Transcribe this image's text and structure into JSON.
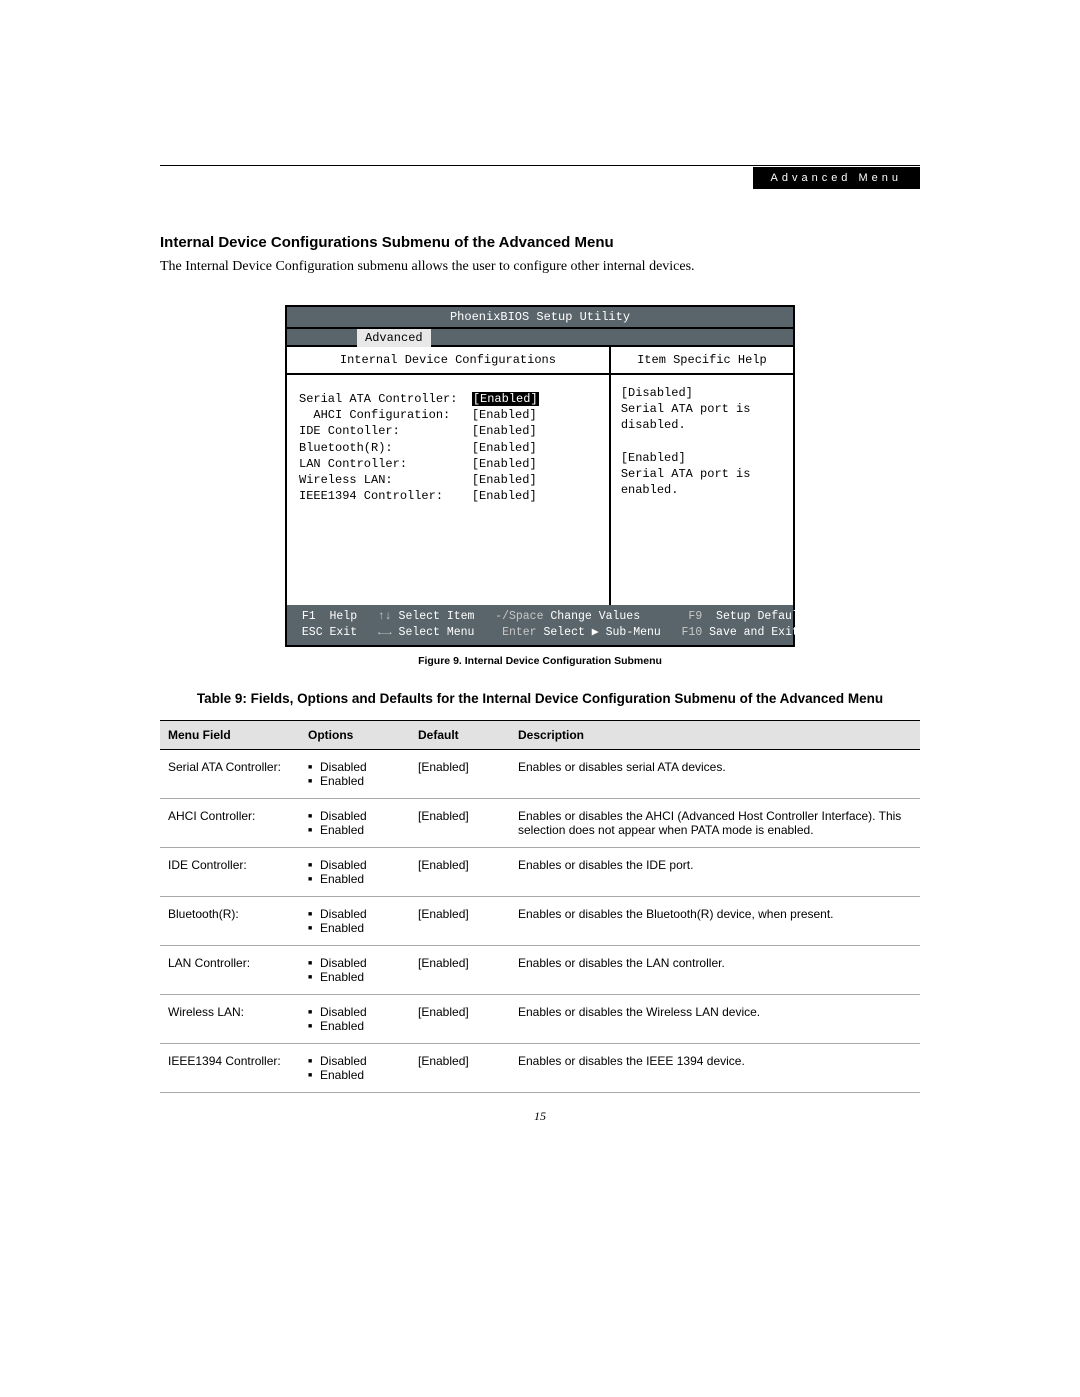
{
  "header": {
    "label": "Advanced Menu"
  },
  "section_title": "Internal Device Configurations Submenu of the Advanced Menu",
  "intro": "The Internal Device Configuration submenu allows the user to configure other internal devices.",
  "bios": {
    "title": "PhoenixBIOS Setup Utility",
    "tab": "Advanced",
    "panel_title_left": "Internal Device Configurations",
    "panel_title_right": "Item Specific Help",
    "items": [
      {
        "label": "Serial ATA Controller:",
        "value": "Enabled]",
        "indent": 0,
        "selected": true
      },
      {
        "label": "AHCI Configuration:",
        "value": "[Enabled]",
        "indent": 1,
        "selected": false
      },
      {
        "label": "IDE Contoller:",
        "value": "[Enabled]",
        "indent": 0,
        "selected": false
      },
      {
        "label": "Bluetooth(R):",
        "value": "[Enabled]",
        "indent": 0,
        "selected": false
      },
      {
        "label": "LAN Controller:",
        "value": "[Enabled]",
        "indent": 0,
        "selected": false
      },
      {
        "label": "Wireless LAN:",
        "value": "[Enabled]",
        "indent": 0,
        "selected": false
      },
      {
        "label": "IEEE1394 Controller:",
        "value": "[Enabled]",
        "indent": 0,
        "selected": false
      }
    ],
    "help_text": "[Disabled]\nSerial ATA port is\ndisabled.\n\n[Enabled]\nSerial ATA port is\nenabled.",
    "footer": {
      "f1": "F1",
      "help": "Help",
      "sel_item_k": "↑↓",
      "sel_item": "Select Item",
      "chg_k": "-/Space",
      "chg": "Change Values",
      "f9": "F9",
      "defaults": "Setup Defaults",
      "esc": "ESC",
      "exit": "Exit",
      "sel_menu_k": "←→",
      "sel_menu": "Select Menu",
      "enter": "Enter",
      "sub": "Select ▶ Sub-Menu",
      "f10": "F10",
      "save": "Save and Exit"
    }
  },
  "figure_caption": "Figure 9.   Internal Device Configuration Submenu",
  "table_title": "Table 9: Fields, Options and Defaults for the Internal Device Configuration Submenu of the Advanced Menu",
  "table": {
    "headers": [
      "Menu Field",
      "Options",
      "Default",
      "Description"
    ],
    "rows": [
      {
        "field": "Serial ATA Controller:",
        "options": [
          "Disabled",
          "Enabled"
        ],
        "default": "[Enabled]",
        "desc": "Enables or disables serial ATA devices."
      },
      {
        "field": "AHCI Controller:",
        "options": [
          "Disabled",
          "Enabled"
        ],
        "default": "[Enabled]",
        "desc": "Enables or disables the AHCI (Advanced Host Controller Interface). This selection does not appear when PATA mode is enabled."
      },
      {
        "field": "IDE Controller:",
        "options": [
          "Disabled",
          "Enabled"
        ],
        "default": "[Enabled]",
        "desc": "Enables or disables the IDE port."
      },
      {
        "field": "Bluetooth(R):",
        "options": [
          "Disabled",
          "Enabled"
        ],
        "default": "[Enabled]",
        "desc": "Enables or disables the Bluetooth(R) device, when present."
      },
      {
        "field": "LAN Controller:",
        "options": [
          "Disabled",
          "Enabled"
        ],
        "default": "[Enabled]",
        "desc": "Enables or disables the LAN controller."
      },
      {
        "field": "Wireless LAN:",
        "options": [
          "Disabled",
          "Enabled"
        ],
        "default": "[Enabled]",
        "desc": "Enables or disables the Wireless LAN device."
      },
      {
        "field": "IEEE1394 Controller:",
        "options": [
          "Disabled",
          "Enabled"
        ],
        "default": "[Enabled]",
        "desc": "Enables or disables the IEEE 1394 device."
      }
    ]
  },
  "page_number": "15"
}
